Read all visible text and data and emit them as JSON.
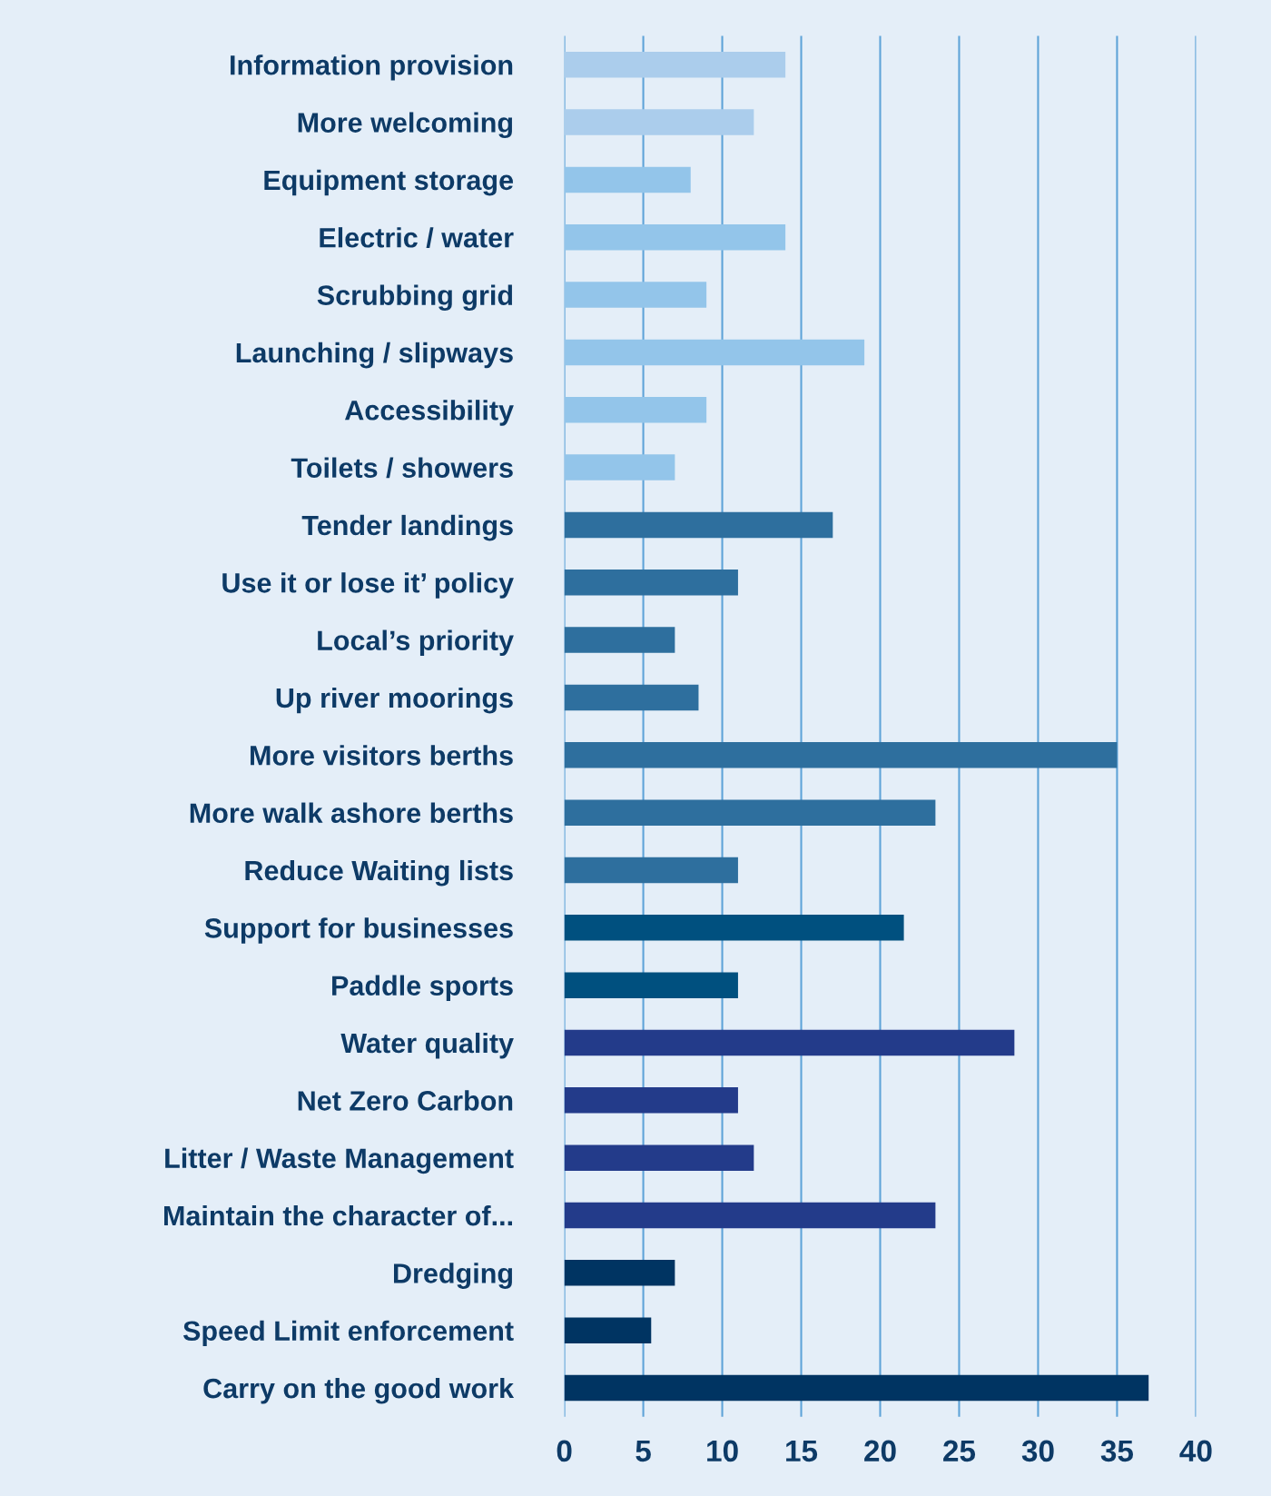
{
  "chart_data": {
    "type": "bar",
    "orientation": "horizontal",
    "categories": [
      "Information provision",
      "More welcoming",
      "Equipment storage",
      "Electric / water",
      "Scrubbing grid",
      "Launching / slipways",
      "Accessibility",
      "Toilets / showers",
      "Tender landings",
      "Use it or lose it’ policy",
      "Local’s priority",
      "Up river moorings",
      "More visitors berths",
      "More walk ashore berths",
      "Reduce Waiting lists",
      "Support for businesses",
      "Paddle sports",
      "Water quality",
      "Net Zero Carbon",
      "Litter / Waste Management",
      "Maintain the character of...",
      "Dredging",
      "Speed Limit enforcement",
      "Carry on the good work"
    ],
    "values": [
      14,
      12,
      8,
      14,
      9,
      19,
      9,
      7,
      17,
      11,
      7,
      8.5,
      35,
      23.5,
      11,
      21.5,
      11,
      28.5,
      11,
      12,
      23.5,
      7,
      5.5,
      37
    ],
    "colors": [
      "#abcdec",
      "#abcdec",
      "#93c5ea",
      "#93c5ea",
      "#93c5ea",
      "#93c5ea",
      "#93c5ea",
      "#93c5ea",
      "#2e6f9e",
      "#2e6f9e",
      "#2e6f9e",
      "#2e6f9e",
      "#2e6f9e",
      "#2e6f9e",
      "#2e6f9e",
      "#00507f",
      "#00507f",
      "#233b8a",
      "#233b8a",
      "#233b8a",
      "#233b8a",
      "#003462",
      "#003462",
      "#003462"
    ],
    "xlim": [
      0,
      40
    ],
    "xticks": [
      0,
      5,
      10,
      15,
      20,
      25,
      30,
      35,
      40
    ],
    "grid": "x"
  }
}
